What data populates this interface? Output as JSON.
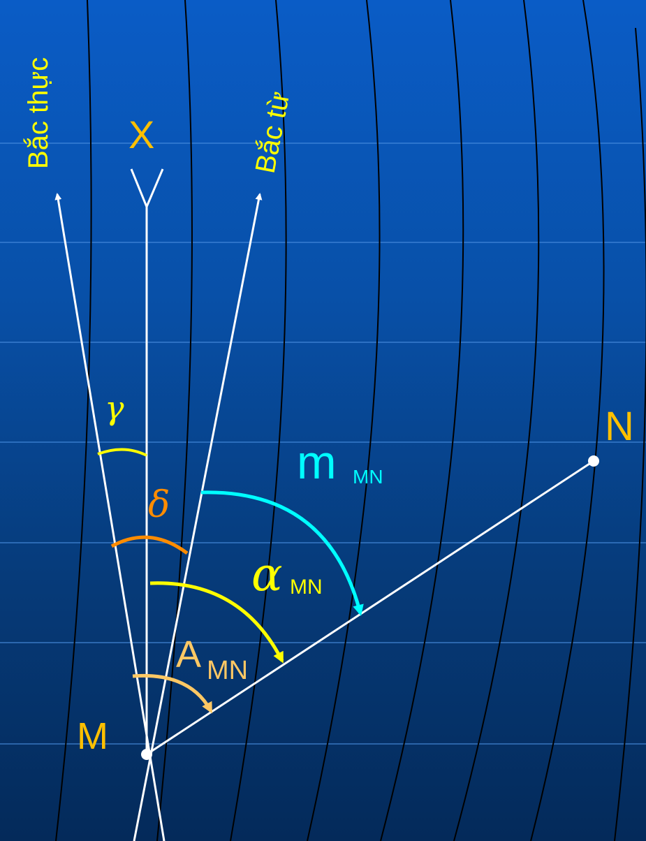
{
  "labels": {
    "bac_thuc": "Bắc thực",
    "bac_tu": "Bắc từ",
    "x_axis": "X",
    "point_m": "M",
    "point_n": "N",
    "gamma": "γ",
    "delta": "δ",
    "m_mn_main": "m",
    "m_mn_sub": "MN",
    "alpha_main": "α",
    "alpha_sub": "MN",
    "a_main": "A",
    "a_sub": "MN"
  },
  "colors": {
    "background_top": "#0a5cc6",
    "background_bottom": "#042a5a",
    "lines": "#ffffff",
    "yellow": "#ffff00",
    "gold": "#ffc000",
    "orange": "#ff8c00",
    "cyan": "#00ffff",
    "peach": "#ffc864",
    "contour": "#000000"
  }
}
